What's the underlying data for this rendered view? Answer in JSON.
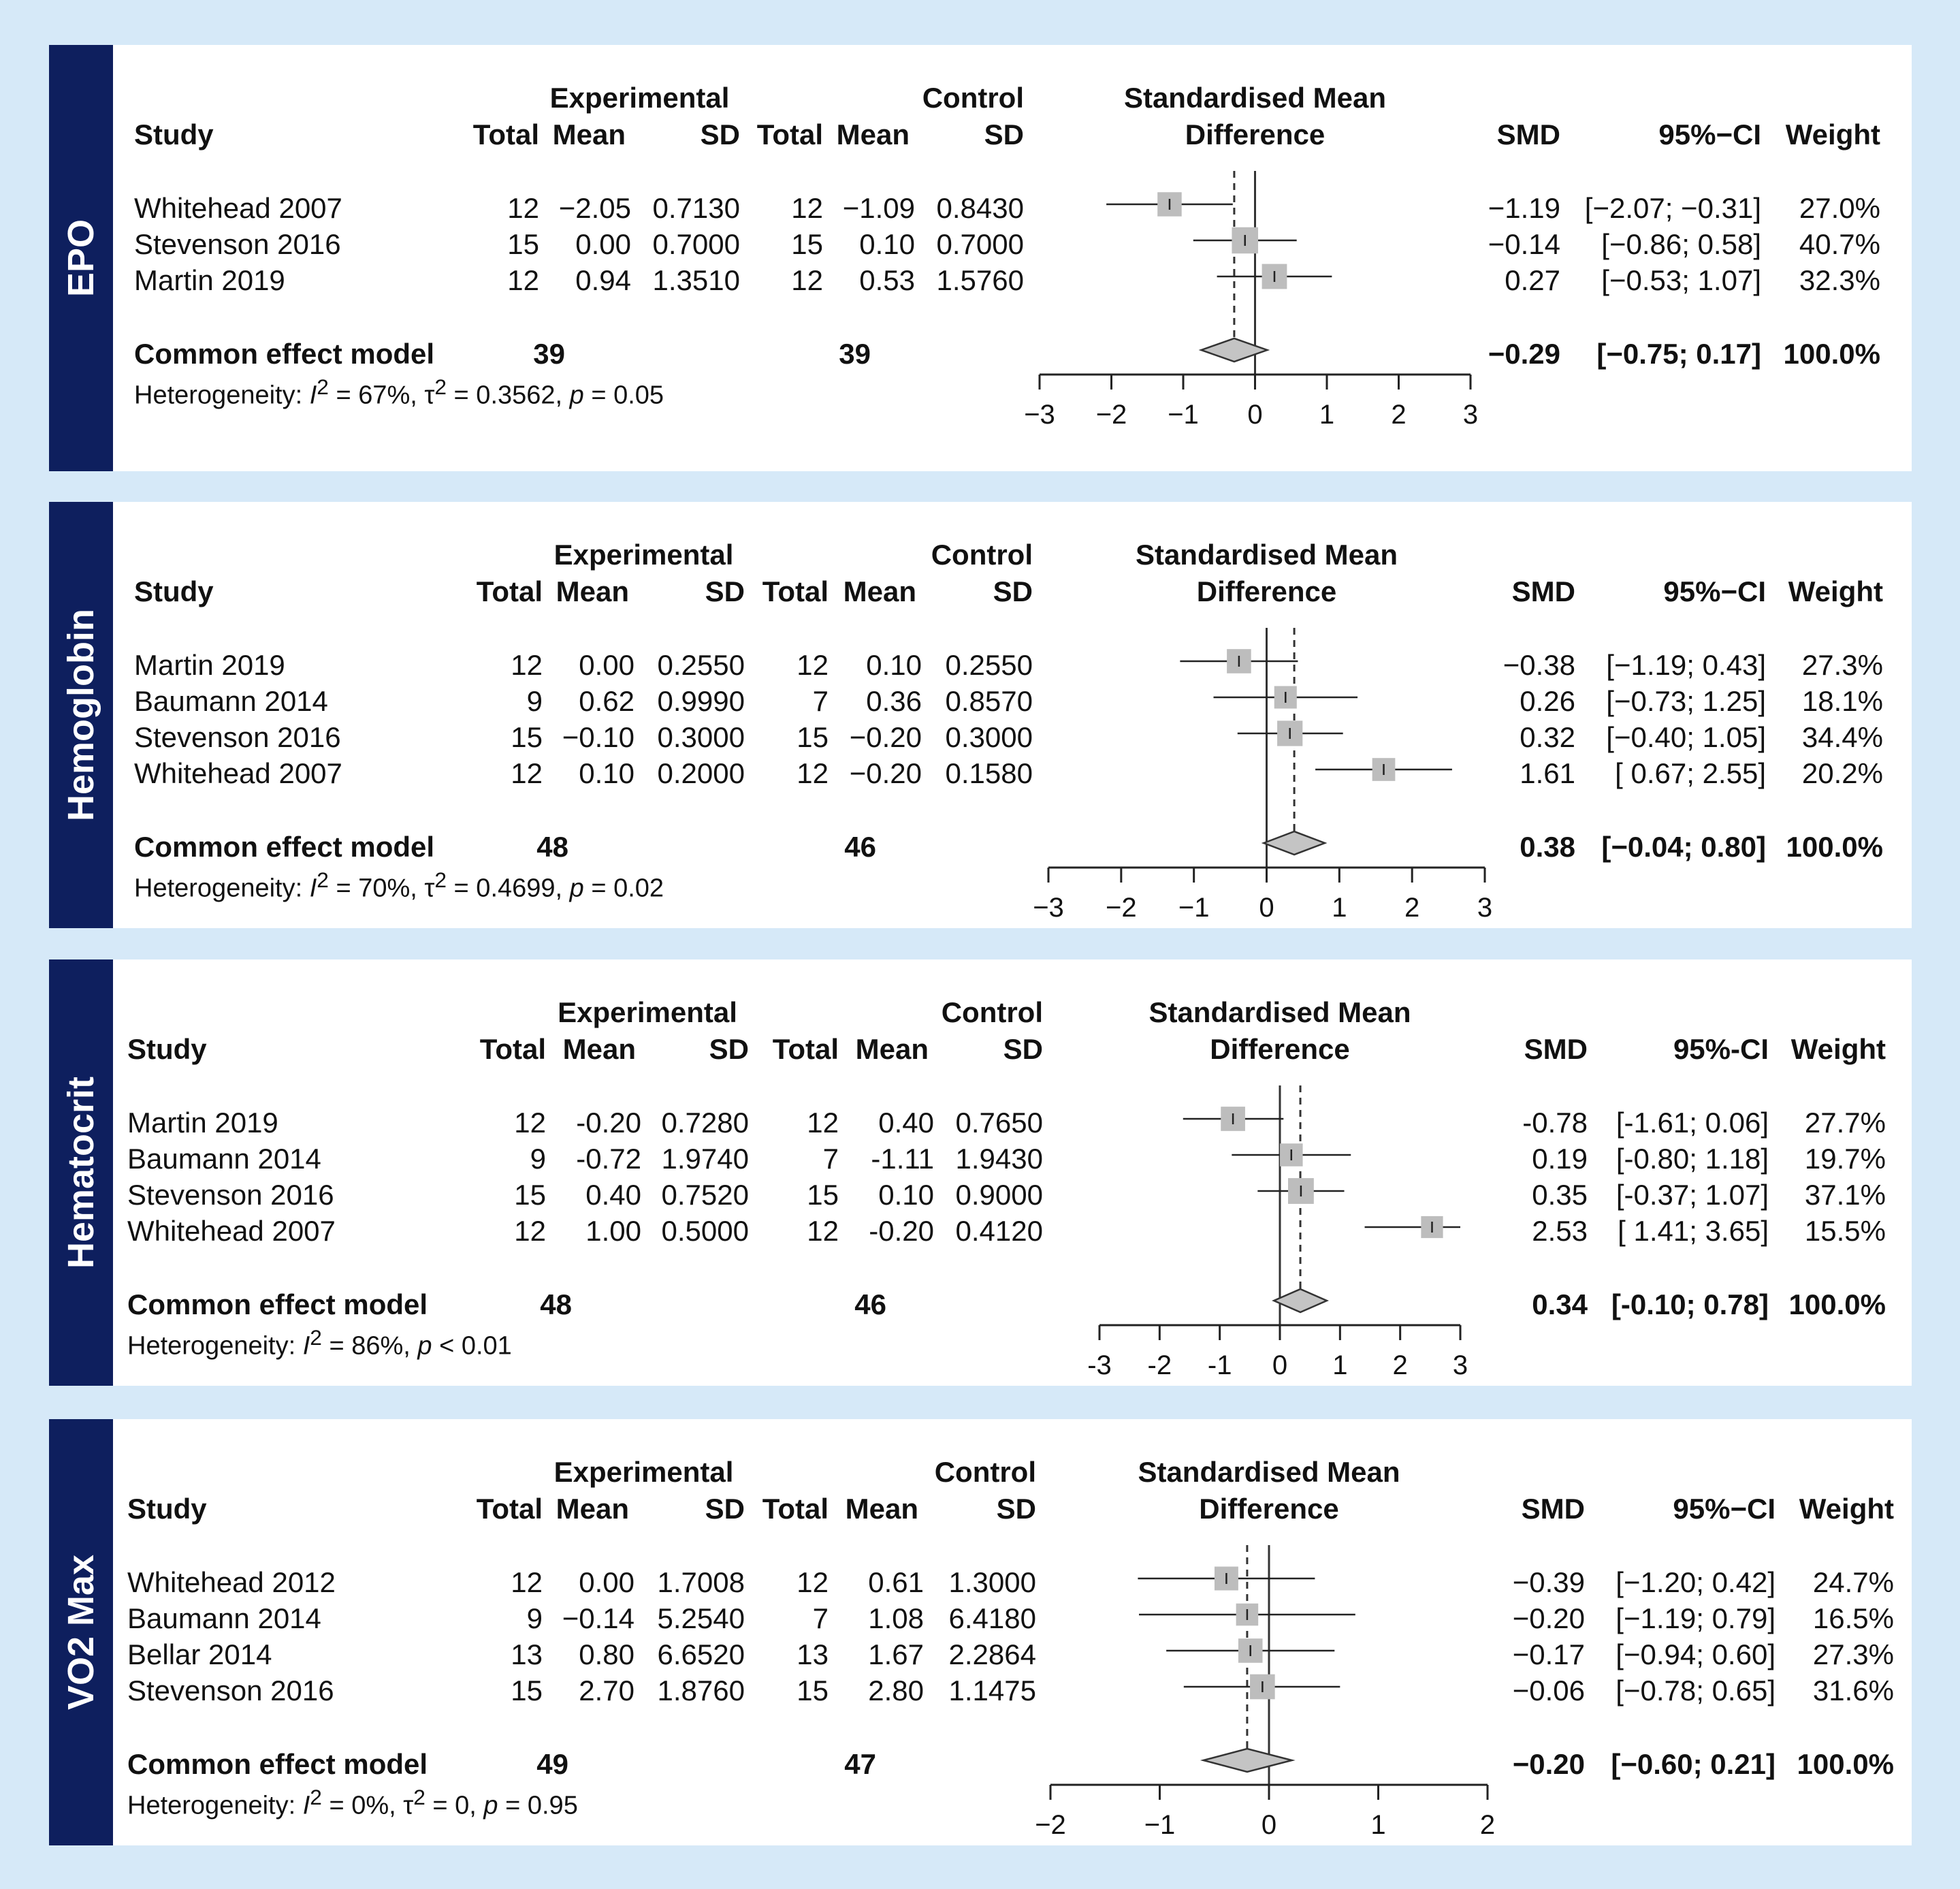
{
  "chart_data": [
    {
      "type": "forest",
      "outcome": "EPO",
      "headers": {
        "group_experimental": "Experimental",
        "group_control": "Control",
        "study": "Study",
        "total": "Total",
        "mean": "Mean",
        "sd": "SD",
        "plot_title_1": "Standardised Mean",
        "plot_title_2": "Difference",
        "smd": "SMD",
        "ci": "95%−CI",
        "weight": "Weight"
      },
      "studies": [
        {
          "name": "Whitehead 2007",
          "e_total": "12",
          "e_mean": "−2.05",
          "e_sd": "0.7130",
          "c_total": "12",
          "c_mean": "−1.09",
          "c_sd": "0.8430",
          "smd": "−1.19",
          "ci": "[−2.07; −0.31]",
          "weight": "27.0%",
          "est": -1.19,
          "lo": -2.07,
          "hi": -0.31,
          "w": 27.0
        },
        {
          "name": "Stevenson 2016",
          "e_total": "15",
          "e_mean": "0.00",
          "e_sd": "0.7000",
          "c_total": "15",
          "c_mean": "0.10",
          "c_sd": "0.7000",
          "smd": "−0.14",
          "ci": "[−0.86;  0.58]",
          "weight": "40.7%",
          "est": -0.14,
          "lo": -0.86,
          "hi": 0.58,
          "w": 40.7
        },
        {
          "name": "Martin 2019",
          "e_total": "12",
          "e_mean": "0.94",
          "e_sd": "1.3510",
          "c_total": "12",
          "c_mean": "0.53",
          "c_sd": "1.5760",
          "smd": "0.27",
          "ci": "[−0.53;  1.07]",
          "weight": "32.3%",
          "est": 0.27,
          "lo": -0.53,
          "hi": 1.07,
          "w": 32.3
        }
      ],
      "summary": {
        "label": "Common effect model",
        "e_total": "39",
        "c_total": "39",
        "smd": "−0.29",
        "ci": "[−0.75;  0.17]",
        "weight": "100.0%",
        "est": -0.29,
        "lo": -0.75,
        "hi": 0.17
      },
      "heterogeneity": {
        "prefix": "Heterogeneity: ",
        "i2_sym": "I",
        "i2_exp": "2",
        "i2_val": " = 67%, ",
        "tau_sym": "τ",
        "tau_exp": "2",
        "tau_val": " = 0.3562, ",
        "p_sym": "p",
        "p_val": " = 0.05"
      },
      "axis": {
        "min": -3,
        "max": 3,
        "ticks": [
          -3,
          -2,
          -1,
          0,
          1,
          2,
          3
        ],
        "tick_labels": [
          "−3",
          "−2",
          "−1",
          "0",
          "1",
          "2",
          "3"
        ]
      }
    },
    {
      "type": "forest",
      "outcome": "Hemoglobin",
      "headers": {
        "group_experimental": "Experimental",
        "group_control": "Control",
        "study": "Study",
        "total": "Total",
        "mean": "Mean",
        "sd": "SD",
        "plot_title_1": "Standardised Mean",
        "plot_title_2": "Difference",
        "smd": "SMD",
        "ci": "95%−CI",
        "weight": "Weight"
      },
      "studies": [
        {
          "name": "Martin 2019",
          "e_total": "12",
          "e_mean": "0.00",
          "e_sd": "0.2550",
          "c_total": "12",
          "c_mean": "0.10",
          "c_sd": "0.2550",
          "smd": "−0.38",
          "ci": "[−1.19; 0.43]",
          "weight": "27.3%",
          "est": -0.38,
          "lo": -1.19,
          "hi": 0.43,
          "w": 27.3
        },
        {
          "name": "Baumann 2014",
          "e_total": "9",
          "e_mean": "0.62",
          "e_sd": "0.9990",
          "c_total": "7",
          "c_mean": "0.36",
          "c_sd": "0.8570",
          "smd": "0.26",
          "ci": "[−0.73; 1.25]",
          "weight": "18.1%",
          "est": 0.26,
          "lo": -0.73,
          "hi": 1.25,
          "w": 18.1
        },
        {
          "name": "Stevenson 2016",
          "e_total": "15",
          "e_mean": "−0.10",
          "e_sd": "0.3000",
          "c_total": "15",
          "c_mean": "−0.20",
          "c_sd": "0.3000",
          "smd": "0.32",
          "ci": "[−0.40; 1.05]",
          "weight": "34.4%",
          "est": 0.32,
          "lo": -0.4,
          "hi": 1.05,
          "w": 34.4
        },
        {
          "name": "Whitehead 2007",
          "e_total": "12",
          "e_mean": "0.10",
          "e_sd": "0.2000",
          "c_total": "12",
          "c_mean": "−0.20",
          "c_sd": "0.1580",
          "smd": "1.61",
          "ci": "[ 0.67; 2.55]",
          "weight": "20.2%",
          "est": 1.61,
          "lo": 0.67,
          "hi": 2.55,
          "w": 20.2
        }
      ],
      "summary": {
        "label": "Common effect model",
        "e_total": "48",
        "c_total": "46",
        "smd": "0.38",
        "ci": "[−0.04; 0.80]",
        "weight": "100.0%",
        "est": 0.38,
        "lo": -0.04,
        "hi": 0.8
      },
      "heterogeneity": {
        "prefix": "Heterogeneity: ",
        "i2_sym": "I",
        "i2_exp": "2",
        "i2_val": " = 70%, ",
        "tau_sym": "τ",
        "tau_exp": "2",
        "tau_val": " = 0.4699, ",
        "p_sym": "p",
        "p_val": " = 0.02"
      },
      "axis": {
        "min": -3,
        "max": 3,
        "ticks": [
          -3,
          -2,
          -1,
          0,
          1,
          2,
          3
        ],
        "tick_labels": [
          "−3",
          "−2",
          "−1",
          "0",
          "1",
          "2",
          "3"
        ]
      }
    },
    {
      "type": "forest",
      "outcome": "Hematocrit",
      "headers": {
        "group_experimental": "Experimental",
        "group_control": "Control",
        "study": "Study",
        "total": "Total",
        "mean": "Mean",
        "sd": "SD",
        "plot_title_1": "Standardised Mean",
        "plot_title_2": "Difference",
        "smd": "SMD",
        "ci": "95%-CI",
        "weight": "Weight"
      },
      "studies": [
        {
          "name": "Martin 2019",
          "e_total": "12",
          "e_mean": "-0.20",
          "e_sd": "0.7280",
          "c_total": "12",
          "c_mean": "0.40",
          "c_sd": "0.7650",
          "smd": "-0.78",
          "ci": "[-1.61; 0.06]",
          "weight": "27.7%",
          "est": -0.78,
          "lo": -1.61,
          "hi": 0.06,
          "w": 27.7
        },
        {
          "name": "Baumann 2014",
          "e_total": "9",
          "e_mean": "-0.72",
          "e_sd": "1.9740",
          "c_total": "7",
          "c_mean": "-1.11",
          "c_sd": "1.9430",
          "smd": "0.19",
          "ci": "[-0.80; 1.18]",
          "weight": "19.7%",
          "est": 0.19,
          "lo": -0.8,
          "hi": 1.18,
          "w": 19.7
        },
        {
          "name": "Stevenson 2016",
          "e_total": "15",
          "e_mean": "0.40",
          "e_sd": "0.7520",
          "c_total": "15",
          "c_mean": "0.10",
          "c_sd": "0.9000",
          "smd": "0.35",
          "ci": "[-0.37; 1.07]",
          "weight": "37.1%",
          "est": 0.35,
          "lo": -0.37,
          "hi": 1.07,
          "w": 37.1
        },
        {
          "name": "Whitehead 2007",
          "e_total": "12",
          "e_mean": "1.00",
          "e_sd": "0.5000",
          "c_total": "12",
          "c_mean": "-0.20",
          "c_sd": "0.4120",
          "smd": "2.53",
          "ci": "[ 1.41; 3.65]",
          "weight": "15.5%",
          "est": 2.53,
          "lo": 1.41,
          "hi": 3.65,
          "w": 15.5
        }
      ],
      "summary": {
        "label": "Common effect model",
        "e_total": "48",
        "c_total": "46",
        "smd": "0.34",
        "ci": "[-0.10; 0.78]",
        "weight": "100.0%",
        "est": 0.34,
        "lo": -0.1,
        "hi": 0.78
      },
      "heterogeneity": {
        "prefix": "Heterogeneity: ",
        "i2_sym": "I",
        "i2_exp": "2",
        "i2_val": " = 86%, ",
        "p_sym": "p",
        "p_val": " < 0.01"
      },
      "axis": {
        "min": -3,
        "max": 3,
        "ticks": [
          -3,
          -2,
          -1,
          0,
          1,
          2,
          3
        ],
        "tick_labels": [
          "-3",
          "-2",
          "-1",
          "0",
          "1",
          "2",
          "3"
        ]
      }
    },
    {
      "type": "forest",
      "outcome": "VO2 Max",
      "headers": {
        "group_experimental": "Experimental",
        "group_control": "Control",
        "study": "Study",
        "total": "Total",
        "mean": "Mean",
        "sd": "SD",
        "plot_title_1": "Standardised Mean",
        "plot_title_2": "Difference",
        "smd": "SMD",
        "ci": "95%−CI",
        "weight": "Weight"
      },
      "studies": [
        {
          "name": "Whitehead 2012",
          "e_total": "12",
          "e_mean": "0.00",
          "e_sd": "1.7008",
          "c_total": "12",
          "c_mean": "0.61",
          "c_sd": "1.3000",
          "smd": "−0.39",
          "ci": "[−1.20; 0.42]",
          "weight": "24.7%",
          "est": -0.39,
          "lo": -1.2,
          "hi": 0.42,
          "w": 24.7
        },
        {
          "name": "Baumann 2014",
          "e_total": "9",
          "e_mean": "−0.14",
          "e_sd": "5.2540",
          "c_total": "7",
          "c_mean": "1.08",
          "c_sd": "6.4180",
          "smd": "−0.20",
          "ci": "[−1.19; 0.79]",
          "weight": "16.5%",
          "est": -0.2,
          "lo": -1.19,
          "hi": 0.79,
          "w": 16.5
        },
        {
          "name": "Bellar 2014",
          "e_total": "13",
          "e_mean": "0.80",
          "e_sd": "6.6520",
          "c_total": "13",
          "c_mean": "1.67",
          "c_sd": "2.2864",
          "smd": "−0.17",
          "ci": "[−0.94; 0.60]",
          "weight": "27.3%",
          "est": -0.17,
          "lo": -0.94,
          "hi": 0.6,
          "w": 27.3
        },
        {
          "name": "Stevenson 2016",
          "e_total": "15",
          "e_mean": "2.70",
          "e_sd": "1.8760",
          "c_total": "15",
          "c_mean": "2.80",
          "c_sd": "1.1475",
          "smd": "−0.06",
          "ci": "[−0.78; 0.65]",
          "weight": "31.6%",
          "est": -0.06,
          "lo": -0.78,
          "hi": 0.65,
          "w": 31.6
        }
      ],
      "summary": {
        "label": "Common effect model",
        "e_total": "49",
        "c_total": "47",
        "smd": "−0.20",
        "ci": "[−0.60; 0.21]",
        "weight": "100.0%",
        "est": -0.2,
        "lo": -0.6,
        "hi": 0.21
      },
      "heterogeneity": {
        "prefix": "Heterogeneity: ",
        "i2_sym": "I",
        "i2_exp": "2",
        "i2_val": " = 0%, ",
        "tau_sym": "τ",
        "tau_exp": "2",
        "tau_val": " = 0, ",
        "p_sym": "p",
        "p_val": " = 0.95"
      },
      "axis": {
        "min": -2,
        "max": 2,
        "ticks": [
          -2,
          -1,
          0,
          1,
          2
        ],
        "tick_labels": [
          "−2",
          "−1",
          "0",
          "1",
          "2"
        ]
      }
    }
  ]
}
